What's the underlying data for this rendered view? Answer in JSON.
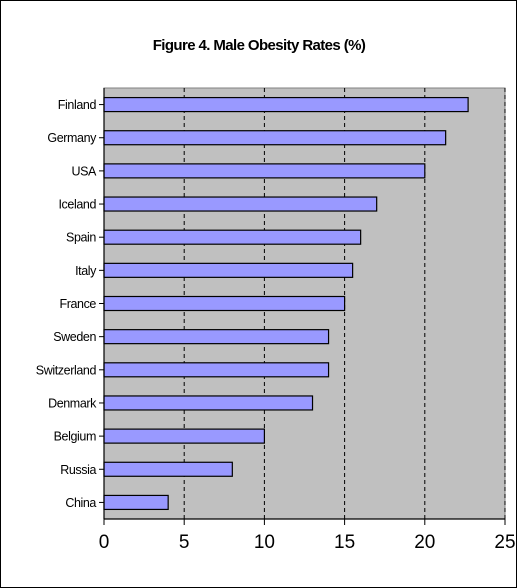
{
  "chart_data": {
    "type": "bar",
    "orientation": "horizontal",
    "title": "Figure 4. Male Obesity Rates (%)",
    "categories": [
      "Finland",
      "Germany",
      "USA",
      "Iceland",
      "Spain",
      "Italy",
      "France",
      "Sweden",
      "Switzerland",
      "Denmark",
      "Belgium",
      "Russia",
      "China"
    ],
    "values": [
      22.7,
      21.3,
      20.0,
      17.0,
      16.0,
      15.5,
      15.0,
      14.0,
      14.0,
      13.0,
      10.0,
      8.0,
      4.0
    ],
    "xlim": [
      0,
      25
    ],
    "xticks": [
      "0",
      "5",
      "10",
      "15",
      "20",
      "25"
    ],
    "xlabel": "",
    "ylabel": "",
    "grid": "vertical dashed",
    "legend": "none",
    "colors": {
      "plot_background": "#c0c0c0",
      "bar_fill": "#9999ff",
      "bar_stroke": "#000000",
      "frame": "#000000"
    }
  }
}
